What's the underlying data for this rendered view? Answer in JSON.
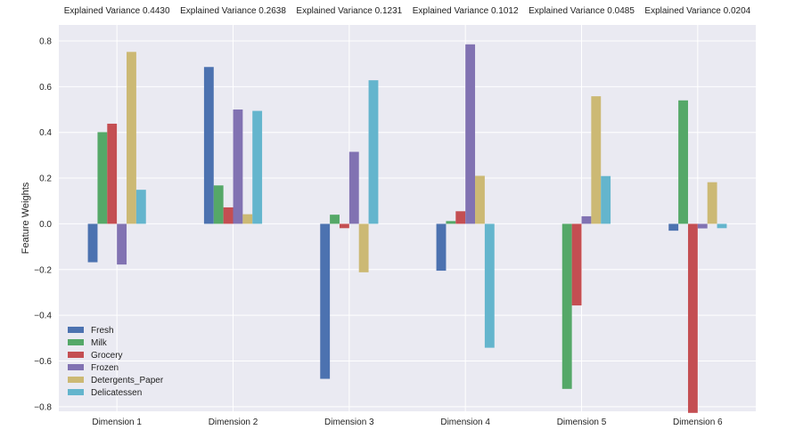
{
  "chart_data": {
    "type": "bar",
    "ylabel": "Feature Weights",
    "xlabel": "",
    "ylim": [
      -0.82,
      0.87
    ],
    "yticks": [
      -0.8,
      -0.6,
      -0.4,
      -0.2,
      0.0,
      0.2,
      0.4,
      0.6,
      0.8
    ],
    "ytick_labels": [
      "−0.8",
      "−0.6",
      "−0.4",
      "−0.2",
      "0.0",
      "0.2",
      "0.4",
      "0.6",
      "0.8"
    ],
    "grid": true,
    "legend_position": "lower-left",
    "background_color": "#eaeaf2",
    "categories": [
      "Dimension 1",
      "Dimension 2",
      "Dimension 3",
      "Dimension 4",
      "Dimension 5",
      "Dimension 6"
    ],
    "explained_variance": [
      "Explained Variance 0.4430",
      "Explained Variance 0.2638",
      "Explained Variance 0.1231",
      "Explained Variance 0.1012",
      "Explained Variance 0.0485",
      "Explained Variance 0.0204"
    ],
    "series": [
      {
        "name": "Fresh",
        "color": "#4c72b0",
        "values": [
          -0.168,
          0.686,
          -0.678,
          -0.205,
          0.0,
          -0.03
        ]
      },
      {
        "name": "Milk",
        "color": "#55a868",
        "values": [
          0.401,
          0.168,
          0.04,
          0.012,
          -0.722,
          0.54
        ]
      },
      {
        "name": "Grocery",
        "color": "#c44e52",
        "values": [
          0.438,
          0.072,
          -0.019,
          0.055,
          -0.357,
          -0.827
        ]
      },
      {
        "name": "Frozen",
        "color": "#8172b2",
        "values": [
          -0.178,
          0.5,
          0.315,
          0.785,
          0.033,
          -0.02
        ]
      },
      {
        "name": "Detergents_Paper",
        "color": "#ccb974",
        "values": [
          0.752,
          0.042,
          -0.212,
          0.21,
          0.558,
          0.182
        ]
      },
      {
        "name": "Delicatessen",
        "color": "#64b5cd",
        "values": [
          0.149,
          0.494,
          0.628,
          -0.542,
          0.209,
          -0.019
        ]
      }
    ]
  }
}
